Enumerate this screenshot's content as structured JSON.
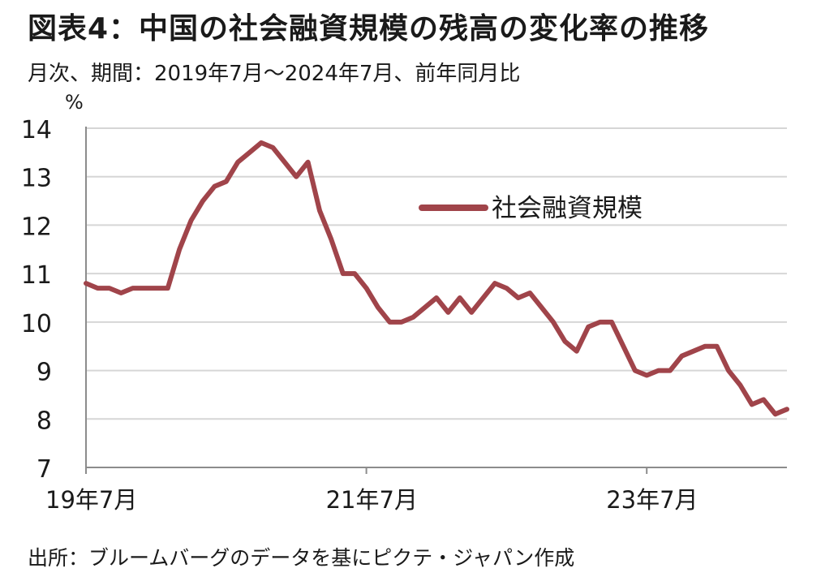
{
  "title": "図表4：中国の社会融資規模の残高の変化率の推移",
  "subtitle": "月次、期間：2019年7月～2024年7月、前年同月比",
  "source": "出所：ブルームバーグのデータを基にピクテ・ジャパン作成",
  "chart_data": {
    "type": "line",
    "ylabel": "%",
    "ylim": [
      7,
      14
    ],
    "yticks": [
      7,
      8,
      9,
      10,
      11,
      12,
      13,
      14
    ],
    "x_start": "2019-07",
    "x_end": "2024-07",
    "xticks": [
      {
        "date": "2019-07",
        "label": "19年7月"
      },
      {
        "date": "2021-07",
        "label": "21年7月"
      },
      {
        "date": "2023-07",
        "label": "23年7月"
      }
    ],
    "grid": true,
    "legend_position": "upper-right",
    "series": [
      {
        "name": "社会融資規模",
        "color": "#A0444A",
        "x": [
          "2019-07",
          "2019-08",
          "2019-09",
          "2019-10",
          "2019-11",
          "2019-12",
          "2020-01",
          "2020-02",
          "2020-03",
          "2020-04",
          "2020-05",
          "2020-06",
          "2020-07",
          "2020-08",
          "2020-09",
          "2020-10",
          "2020-11",
          "2020-12",
          "2021-01",
          "2021-02",
          "2021-03",
          "2021-04",
          "2021-05",
          "2021-06",
          "2021-07",
          "2021-08",
          "2021-09",
          "2021-10",
          "2021-11",
          "2021-12",
          "2022-01",
          "2022-02",
          "2022-03",
          "2022-04",
          "2022-05",
          "2022-06",
          "2022-07",
          "2022-08",
          "2022-09",
          "2022-10",
          "2022-11",
          "2022-12",
          "2023-01",
          "2023-02",
          "2023-03",
          "2023-04",
          "2023-05",
          "2023-06",
          "2023-07",
          "2023-08",
          "2023-09",
          "2023-10",
          "2023-11",
          "2023-12",
          "2024-01",
          "2024-02",
          "2024-03",
          "2024-04",
          "2024-05",
          "2024-06",
          "2024-07"
        ],
        "values": [
          10.8,
          10.7,
          10.7,
          10.6,
          10.7,
          10.7,
          10.7,
          10.7,
          11.5,
          12.1,
          12.5,
          12.8,
          12.9,
          13.3,
          13.5,
          13.7,
          13.6,
          13.3,
          13.0,
          13.3,
          12.3,
          11.7,
          11.0,
          11.0,
          10.7,
          10.3,
          10.0,
          10.0,
          10.1,
          10.3,
          10.5,
          10.2,
          10.5,
          10.2,
          10.5,
          10.8,
          10.7,
          10.5,
          10.6,
          10.3,
          10.0,
          9.6,
          9.4,
          9.9,
          10.0,
          10.0,
          9.5,
          9.0,
          8.9,
          9.0,
          9.0,
          9.3,
          9.4,
          9.5,
          9.5,
          9.0,
          8.7,
          8.3,
          8.4,
          8.1,
          8.2
        ]
      }
    ]
  }
}
